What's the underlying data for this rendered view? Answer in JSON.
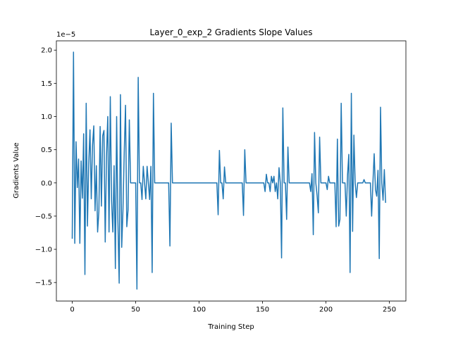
{
  "chart_data": {
    "type": "line",
    "title": "Layer_0_exp_2 Gradients Slope Values",
    "xlabel": "Training Step",
    "ylabel": "Gradients Value",
    "offset_text": "1e−5",
    "xlim": [
      -12.5,
      263
    ],
    "ylim": [
      -1.78e-05,
      2.14e-05
    ],
    "xticks": [
      0,
      50,
      100,
      150,
      200,
      250
    ],
    "xtick_labels": [
      "0",
      "50",
      "100",
      "150",
      "200",
      "250"
    ],
    "yticks": [
      -1.5e-05,
      -1e-05,
      -5e-06,
      0,
      5e-06,
      1e-05,
      1.5e-05,
      2e-05
    ],
    "ytick_labels": [
      "−1.5",
      "−1.0",
      "−0.5",
      "0.0",
      "0.5",
      "1.0",
      "1.5",
      "2.0"
    ],
    "grid": false,
    "line_color": "#1f77b4",
    "series": [
      {
        "values": [
          -8.4e-06,
          1.97e-05,
          -9.1e-06,
          6.2e-06,
          -7e-07,
          3.6e-06,
          -9.1e-06,
          3.3e-06,
          -2.3e-06,
          7.4e-06,
          -1.38e-05,
          1.2e-05,
          -6.5e-06,
          2.9e-06,
          8e-06,
          -2.4e-06,
          5.7e-06,
          8.6e-06,
          -4.2e-06,
          2.6e-06,
          -7.4e-06,
          -4.3e-06,
          8.5e-06,
          -3.5e-06,
          7.1e-06,
          7.9e-06,
          -8.9e-06,
          4e-06,
          1e-05,
          -7.4e-06,
          1.3e-05,
          -2.6e-06,
          -7.4e-06,
          2.6e-06,
          -1.29e-05,
          1e-05,
          -5.8e-06,
          -1.51e-05,
          1.33e-05,
          -9.7e-06,
          -4e-06,
          4.7e-06,
          1.17e-05,
          -6.6e-06,
          -4.1e-06,
          9.5e-06,
          0,
          0,
          0,
          0,
          0,
          -1.6e-05,
          1.59e-05,
          0,
          0,
          -2.5e-06,
          2.5e-06,
          0,
          -2.4e-06,
          2.5e-06,
          0,
          -2.5e-06,
          2.5e-06,
          -1.35e-05,
          1.35e-05,
          0,
          0,
          0,
          0,
          0,
          0,
          0,
          0,
          0,
          0,
          0,
          0,
          -9.5e-06,
          9e-06,
          0,
          0,
          0,
          0,
          0,
          0,
          0,
          0,
          0,
          0,
          0,
          0,
          0,
          0,
          0,
          0,
          0,
          0,
          0,
          0,
          0,
          0,
          0,
          0,
          0,
          0,
          0,
          0,
          0,
          0,
          0,
          0,
          0,
          0,
          0,
          0,
          -4.8e-06,
          4.9e-06,
          0,
          0,
          -2.4e-06,
          2.4e-06,
          0,
          0,
          0,
          0,
          0,
          0,
          0,
          0,
          0,
          0,
          0,
          0,
          0,
          0,
          -4.9e-06,
          5e-06,
          0,
          0,
          0,
          0,
          0,
          0,
          0,
          0,
          0,
          0,
          0,
          0,
          0,
          0,
          0,
          -1.3e-06,
          1.3e-06,
          0,
          0,
          -1.3e-06,
          1e-06,
          0,
          1e-06,
          -1.3e-06,
          0,
          -2.4e-06,
          2.3e-06,
          0,
          -1.13e-05,
          1.13e-05,
          0,
          0,
          -5.5e-06,
          5.4e-06,
          0,
          0,
          0,
          0,
          0,
          0,
          0,
          0,
          0,
          0,
          0,
          0,
          0,
          0,
          0,
          0,
          0,
          -1.3e-06,
          1.4e-06,
          -7.8e-06,
          7.6e-06,
          0,
          -1.9e-06,
          -4.5e-06,
          6.9e-06,
          0,
          0,
          0,
          0,
          0,
          -1e-06,
          1e-06,
          0,
          0,
          0,
          0,
          0,
          -6.6e-06,
          6.6e-06,
          -6.5e-06,
          -5.5e-06,
          1.2e-05,
          0,
          0,
          0,
          -5e-06,
          1.2e-06,
          4.3e-06,
          -1.35e-05,
          1.35e-05,
          -7.3e-06,
          7.2e-06,
          0,
          -2.2e-06,
          0,
          0,
          0,
          0,
          0,
          5e-07,
          0,
          0,
          0,
          0,
          0,
          -5e-06,
          0,
          4.4e-06,
          -1e-06,
          -2e-06,
          1.9e-06,
          -1.14e-05,
          1.14e-05,
          0,
          -2.6e-06,
          2e-06,
          -3e-06
        ]
      }
    ]
  }
}
